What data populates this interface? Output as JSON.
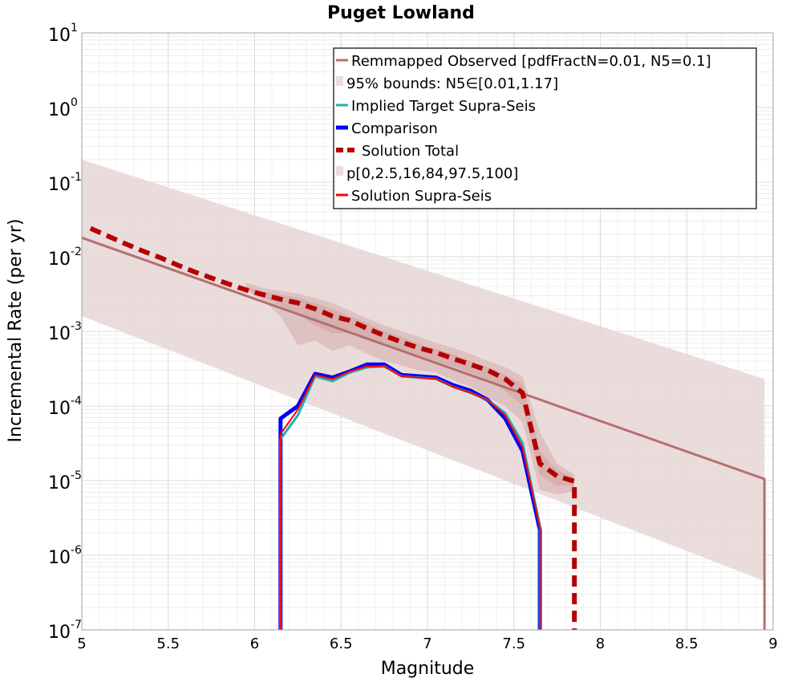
{
  "chart_data": {
    "type": "line",
    "title": "Puget Lowland",
    "xlabel": "Magnitude",
    "ylabel": "Incremental Rate (per yr)",
    "xlim": [
      5,
      9
    ],
    "ylim": [
      1e-07,
      10
    ],
    "yscale": "log",
    "grid": true,
    "legend_position": "top-right",
    "x_ticks": [
      "5",
      "5.5",
      "6",
      "6.5",
      "7",
      "7.5",
      "8",
      "8.5",
      "9"
    ],
    "y_ticks": [
      {
        "base": "10",
        "exp": "-7",
        "value": 1e-07
      },
      {
        "base": "10",
        "exp": "-6",
        "value": 1e-06
      },
      {
        "base": "10",
        "exp": "-5",
        "value": 1e-05
      },
      {
        "base": "10",
        "exp": "-4",
        "value": 0.0001
      },
      {
        "base": "10",
        "exp": "-3",
        "value": 0.001
      },
      {
        "base": "10",
        "exp": "-2",
        "value": 0.01
      },
      {
        "base": "10",
        "exp": "-1",
        "value": 0.1
      },
      {
        "base": "10",
        "exp": "0",
        "value": 1
      },
      {
        "base": "10",
        "exp": "1",
        "value": 10
      }
    ],
    "legend": [
      {
        "label": "Remmapped Observed [pdfFractN=0.01, N5=0.1]",
        "color": "#b47070",
        "style": "line"
      },
      {
        "label": "95% bounds: N5∈[0.01,1.17]",
        "color": "#ecdcdc",
        "style": "band"
      },
      {
        "label": "Implied Target Supra-Seis",
        "color": "#20b0b0",
        "style": "line"
      },
      {
        "label": "Comparison",
        "color": "#0000ff",
        "style": "thick"
      },
      {
        "label": "Solution Total",
        "color": "#b40000",
        "style": "dashed"
      },
      {
        "label": "p[0,2.5,16,84,97.5,100]",
        "color": "#ecdcdc",
        "style": "band"
      },
      {
        "label": "Solution Supra-Seis",
        "color": "#ff0000",
        "style": "line"
      }
    ],
    "bounds_band": {
      "name": "95% bounds: N5∈[0.01,1.17]",
      "x": [
        5.0,
        8.95
      ],
      "upper": [
        0.2,
        0.00023
      ],
      "lower": [
        0.0016,
        4.5e-07
      ]
    },
    "series": [
      {
        "name": "Remmapped Observed [pdfFractN=0.01, N5=0.1]",
        "x": [
          5.0,
          8.95,
          8.95
        ],
        "y": [
          0.018,
          1.05e-05,
          1e-07
        ]
      },
      {
        "name": "Solution Total",
        "x": [
          5.05,
          5.15,
          5.25,
          5.35,
          5.45,
          5.55,
          5.65,
          5.75,
          5.85,
          5.95,
          6.05,
          6.15,
          6.25,
          6.35,
          6.45,
          6.55,
          6.65,
          6.75,
          6.85,
          6.95,
          7.05,
          7.15,
          7.25,
          7.35,
          7.45,
          7.55,
          7.65,
          7.75,
          7.85,
          7.85
        ],
        "y": [
          0.024,
          0.019,
          0.015,
          0.012,
          0.0098,
          0.0078,
          0.0063,
          0.0052,
          0.0043,
          0.0036,
          0.0031,
          0.0027,
          0.0024,
          0.002,
          0.0016,
          0.0014,
          0.0011,
          0.00088,
          0.00072,
          0.0006,
          0.00052,
          0.00043,
          0.00036,
          0.0003,
          0.00023,
          0.00015,
          1.7e-05,
          1.15e-05,
          9.8e-06,
          1e-07
        ]
      },
      {
        "name": "Implied Target Supra-Seis",
        "x": [
          6.15,
          6.15,
          6.25,
          6.35,
          6.45,
          6.55,
          6.65,
          6.75,
          6.85,
          6.95,
          7.05,
          7.15,
          7.25,
          7.35,
          7.45,
          7.55,
          7.65,
          7.65
        ],
        "y": [
          1e-07,
          3.6e-05,
          7.5e-05,
          0.00025,
          0.000215,
          0.00028,
          0.00033,
          0.00034,
          0.00025,
          0.00024,
          0.00023,
          0.00018,
          0.00015,
          0.00012,
          8e-05,
          3.2e-05,
          2.5e-06,
          1e-07
        ]
      },
      {
        "name": "Comparison",
        "x": [
          6.15,
          6.15,
          6.25,
          6.35,
          6.45,
          6.55,
          6.65,
          6.75,
          6.85,
          6.95,
          7.05,
          7.15,
          7.25,
          7.35,
          7.45,
          7.55,
          7.65,
          7.65
        ],
        "y": [
          1e-07,
          6.8e-05,
          0.0001,
          0.00027,
          0.00024,
          0.00029,
          0.00036,
          0.00036,
          0.00026,
          0.00025,
          0.00024,
          0.00019,
          0.00016,
          0.00012,
          6.8e-05,
          2.5e-05,
          2.2e-06,
          1e-07
        ]
      },
      {
        "name": "Solution Supra-Seis",
        "x": [
          6.15,
          6.15,
          6.25,
          6.35,
          6.45,
          6.55,
          6.65,
          6.75,
          6.85,
          6.95,
          7.05,
          7.15,
          7.25,
          7.35,
          7.45,
          7.55,
          7.65,
          7.65
        ],
        "y": [
          1e-07,
          4.2e-05,
          9e-05,
          0.00026,
          0.00023,
          0.00029,
          0.00034,
          0.00034,
          0.00025,
          0.00024,
          0.00023,
          0.00018,
          0.00015,
          0.00012,
          7.5e-05,
          2.8e-05,
          2.4e-06,
          1e-07
        ]
      }
    ],
    "percentile_bands": {
      "name": "p[0,2.5,16,84,97.5,100]",
      "x": [
        5.95,
        6.05,
        6.15,
        6.25,
        6.35,
        6.45,
        6.55,
        6.65,
        6.75,
        6.85,
        6.95,
        7.05,
        7.15,
        7.25,
        7.35,
        7.45,
        7.55,
        7.65,
        7.75,
        7.85
      ],
      "p0": [
        0.0036,
        0.0026,
        0.0016,
        0.00065,
        0.00075,
        0.00055,
        0.00065,
        0.0005,
        0.0004,
        0.00035,
        0.0003,
        0.00028,
        0.00022,
        0.00018,
        0.00013,
        0.0001,
        6e-05,
        7.5e-06,
        6.5e-06,
        7.2e-06
      ],
      "p16": [
        0.0036,
        0.0029,
        0.0022,
        0.0017,
        0.0012,
        0.00095,
        0.00095,
        0.0008,
        0.00065,
        0.00055,
        0.00047,
        0.0004,
        0.00034,
        0.00028,
        0.00022,
        0.00016,
        0.0001,
        1.2e-05,
        8.5e-06,
        8.5e-06
      ],
      "p84": [
        0.004,
        0.0034,
        0.0031,
        0.0028,
        0.0024,
        0.002,
        0.0016,
        0.0013,
        0.001,
        0.00085,
        0.00068,
        0.00058,
        0.00049,
        0.0004,
        0.00033,
        0.00026,
        0.0002,
        2.4e-05,
        1.4e-05,
        1.1e-05
      ],
      "p100": [
        0.0045,
        0.0038,
        0.0035,
        0.0032,
        0.0028,
        0.0024,
        0.0019,
        0.0015,
        0.0012,
        0.001,
        0.00085,
        0.0007,
        0.0006,
        0.0005,
        0.0004,
        0.00033,
        0.00025,
        4.5e-05,
        1.7e-05,
        1.2e-05
      ]
    }
  }
}
